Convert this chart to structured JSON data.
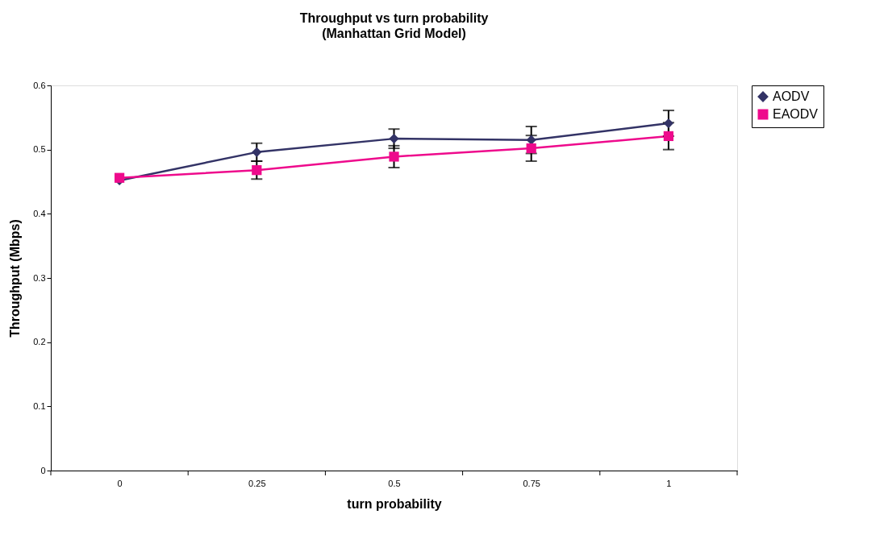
{
  "chart_data": {
    "type": "line",
    "title": "Throughput vs turn probability",
    "subtitle": "(Manhattan Grid Model)",
    "xlabel": "turn probability",
    "ylabel": "Throughput (Mbps)",
    "categories": [
      "0",
      "0.25",
      "0.5",
      "0.75",
      "1"
    ],
    "series": [
      {
        "name": "AODV",
        "color": "#333366",
        "marker": "diamond",
        "values": [
          0.452,
          0.496,
          0.517,
          0.515,
          0.541
        ],
        "errors": [
          null,
          0.014,
          0.015,
          0.021,
          0.02
        ]
      },
      {
        "name": "EAODV",
        "color": "#ee0a8c",
        "marker": "square",
        "values": [
          0.456,
          0.468,
          0.489,
          0.502,
          0.521
        ],
        "errors": [
          null,
          0.014,
          0.017,
          0.02,
          0.021
        ]
      }
    ],
    "ylim": [
      0,
      0.6
    ],
    "yticks": [
      0,
      0.1,
      0.2,
      0.3,
      0.4,
      0.5,
      0.6
    ],
    "grid": false,
    "legend": "right",
    "line_style": "solid"
  }
}
